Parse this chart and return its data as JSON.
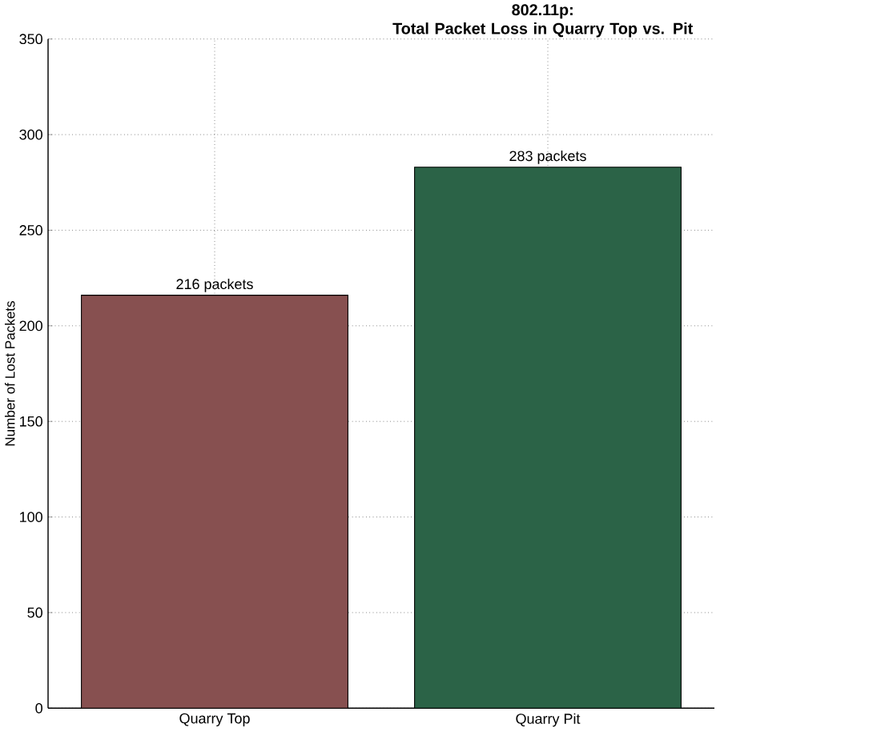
{
  "chart_data": {
    "type": "bar",
    "title": "802.11p:\nTotal Packet Loss in Quarry Top vs. Pit",
    "ylabel": "Number of Lost Packets",
    "categories": [
      "Quarry Top",
      "Quarry Pit"
    ],
    "values": [
      216,
      283
    ],
    "colors": [
      "#875050",
      "#2b6347"
    ],
    "value_labels": [
      "216 packets",
      "283 packets"
    ],
    "ylim": [
      0,
      350
    ],
    "yticks": [
      0,
      50,
      100,
      150,
      200,
      250,
      300,
      350
    ],
    "grid": true
  }
}
